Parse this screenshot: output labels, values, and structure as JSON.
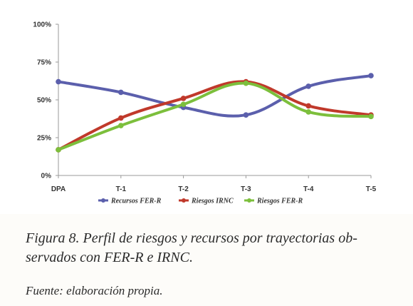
{
  "chart_data": {
    "type": "line",
    "categories": [
      "DPA",
      "T-1",
      "T-2",
      "T-3",
      "T-4",
      "T-5"
    ],
    "ylim": [
      0,
      100
    ],
    "yticks": [
      0,
      25,
      50,
      75,
      100
    ],
    "ytick_labels": [
      "0%",
      "25%",
      "50%",
      "75%",
      "100%"
    ],
    "grid": false,
    "legend_position": "bottom",
    "series": [
      {
        "name": "Recursos FER-R",
        "color": "#5b5fac",
        "values": [
          62,
          55,
          45,
          40,
          59,
          66
        ]
      },
      {
        "name": "Riesgos IRNC",
        "color": "#c0392b",
        "values": [
          17,
          38,
          51,
          62,
          46,
          40
        ]
      },
      {
        "name": "Riesgos FER-R",
        "color": "#7cbf3c",
        "values": [
          17,
          33,
          47,
          61,
          42,
          39
        ]
      }
    ]
  },
  "caption": {
    "line1": "Figura 8. Perfil de riesgos y recursos por trayectorias ob-",
    "line2": "servados con FER-R e IRNC."
  },
  "source": "Fuente: elaboración propia."
}
